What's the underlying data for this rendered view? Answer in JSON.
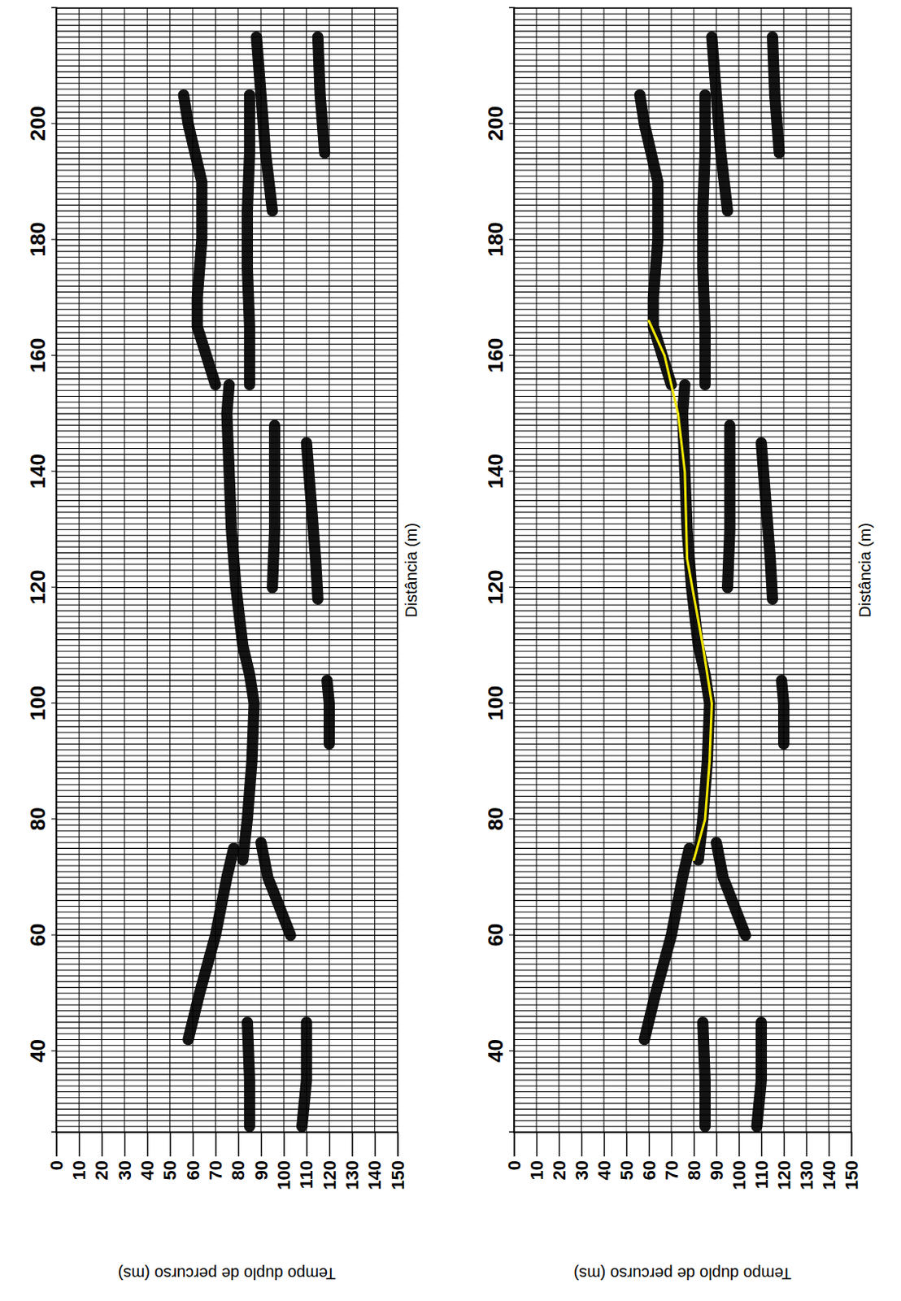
{
  "chart_data": [
    {
      "type": "line",
      "xlabel": "Distância (m)",
      "ylabel": "Tempo duplo de percurso (ms)",
      "xlim": [
        26,
        220
      ],
      "xticks": [
        40,
        60,
        80,
        100,
        120,
        140,
        160,
        180,
        200
      ],
      "ylim": [
        0,
        150
      ],
      "yticks": [
        0,
        10,
        20,
        30,
        40,
        50,
        60,
        70,
        80,
        90,
        100,
        110,
        120,
        130,
        140,
        150
      ],
      "grid": true,
      "series": [
        {
          "x": [
            73,
            80,
            90,
            100,
            105,
            110,
            120,
            130,
            140,
            150,
            155
          ],
          "values": [
            82,
            84,
            86,
            87,
            85,
            82,
            79,
            77,
            76,
            75,
            76
          ],
          "color": "#000000",
          "line_style": "band"
        },
        {
          "x": [
            155,
            165,
            175,
            185,
            195,
            205
          ],
          "values": [
            85,
            85,
            84,
            84,
            85,
            85
          ],
          "color": "#000000",
          "line_style": "band"
        },
        {
          "x": [
            155,
            160,
            165,
            170,
            180,
            190,
            200,
            205
          ],
          "values": [
            70,
            66,
            62,
            62,
            64,
            64,
            58,
            56
          ],
          "color": "#000000",
          "line_style": "band"
        },
        {
          "x": [
            120,
            130,
            140,
            148
          ],
          "values": [
            95,
            96,
            96,
            96
          ],
          "color": "#000000",
          "line_style": "band"
        },
        {
          "x": [
            118,
            125,
            135,
            145
          ],
          "values": [
            115,
            114,
            112,
            110
          ],
          "color": "#000000",
          "line_style": "band"
        },
        {
          "x": [
            93,
            100,
            104
          ],
          "values": [
            120,
            120,
            119
          ],
          "color": "#000000",
          "line_style": "band"
        },
        {
          "x": [
            27,
            35,
            45
          ],
          "values": [
            85,
            85,
            84
          ],
          "color": "#000000",
          "line_style": "band"
        },
        {
          "x": [
            27,
            35,
            45
          ],
          "values": [
            108,
            110,
            110
          ],
          "color": "#000000",
          "line_style": "band"
        },
        {
          "x": [
            42,
            50,
            60,
            70,
            75
          ],
          "values": [
            58,
            63,
            70,
            75,
            78
          ],
          "color": "#000000",
          "line_style": "band"
        },
        {
          "x": [
            60,
            65,
            70,
            76
          ],
          "values": [
            103,
            98,
            93,
            90
          ],
          "color": "#000000",
          "line_style": "band"
        },
        {
          "x": [
            185,
            195,
            205,
            215
          ],
          "values": [
            95,
            92,
            90,
            88
          ],
          "color": "#000000",
          "line_style": "band"
        },
        {
          "x": [
            195,
            205,
            215
          ],
          "values": [
            118,
            116,
            115
          ],
          "color": "#000000",
          "line_style": "band"
        }
      ]
    },
    {
      "type": "line",
      "xlabel": "Distância (m)",
      "ylabel": "Tempo duplo de percurso (ms)",
      "xlim": [
        26,
        220
      ],
      "xticks": [
        40,
        60,
        80,
        100,
        120,
        140,
        160,
        180,
        200
      ],
      "ylim": [
        0,
        150
      ],
      "yticks": [
        0,
        10,
        20,
        30,
        40,
        50,
        60,
        70,
        80,
        90,
        100,
        110,
        120,
        130,
        140,
        150
      ],
      "grid": true,
      "series": [
        {
          "x": [
            73,
            80,
            90,
            100,
            105,
            110,
            120,
            130,
            140,
            150,
            155
          ],
          "values": [
            82,
            84,
            86,
            87,
            85,
            82,
            79,
            77,
            76,
            75,
            76
          ],
          "color": "#000000",
          "line_style": "band"
        },
        {
          "x": [
            155,
            165,
            175,
            185,
            195,
            205
          ],
          "values": [
            85,
            85,
            84,
            84,
            85,
            85
          ],
          "color": "#000000",
          "line_style": "band"
        },
        {
          "x": [
            155,
            160,
            165,
            170,
            180,
            190,
            200,
            205
          ],
          "values": [
            70,
            66,
            62,
            62,
            64,
            64,
            58,
            56
          ],
          "color": "#000000",
          "line_style": "band"
        },
        {
          "x": [
            120,
            130,
            140,
            148
          ],
          "values": [
            95,
            96,
            96,
            96
          ],
          "color": "#000000",
          "line_style": "band"
        },
        {
          "x": [
            118,
            125,
            135,
            145
          ],
          "values": [
            115,
            114,
            112,
            110
          ],
          "color": "#000000",
          "line_style": "band"
        },
        {
          "x": [
            93,
            100,
            104
          ],
          "values": [
            120,
            120,
            119
          ],
          "color": "#000000",
          "line_style": "band"
        },
        {
          "x": [
            27,
            35,
            45
          ],
          "values": [
            85,
            85,
            84
          ],
          "color": "#000000",
          "line_style": "band"
        },
        {
          "x": [
            27,
            35,
            45
          ],
          "values": [
            108,
            110,
            110
          ],
          "color": "#000000",
          "line_style": "band"
        },
        {
          "x": [
            42,
            50,
            60,
            70,
            75
          ],
          "values": [
            58,
            63,
            70,
            75,
            78
          ],
          "color": "#000000",
          "line_style": "band"
        },
        {
          "x": [
            60,
            65,
            70,
            76
          ],
          "values": [
            103,
            98,
            93,
            90
          ],
          "color": "#000000",
          "line_style": "band"
        },
        {
          "x": [
            185,
            195,
            205,
            215
          ],
          "values": [
            95,
            92,
            90,
            88
          ],
          "color": "#000000",
          "line_style": "band"
        },
        {
          "x": [
            195,
            205,
            215
          ],
          "values": [
            118,
            116,
            115
          ],
          "color": "#000000",
          "line_style": "band"
        },
        {
          "x": [
            166,
            160,
            150,
            140,
            125,
            110,
            100,
            90,
            80,
            73
          ],
          "values": [
            60,
            67,
            73,
            76,
            77,
            84,
            88,
            87,
            85,
            80
          ],
          "color": "#f2e600",
          "line_style": "solid"
        }
      ]
    }
  ]
}
